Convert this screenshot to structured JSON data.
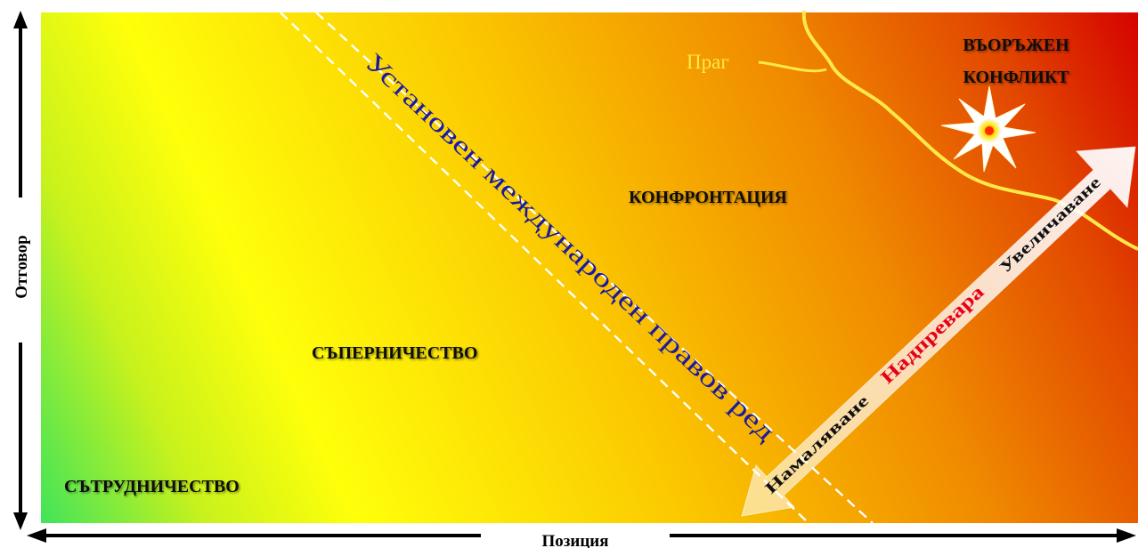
{
  "zones": {
    "cooperation": "СЪТРУДНИЧЕСТВО",
    "rivalry": "СЪПЕРНИЧЕСТВО",
    "confrontation": "КОНФРОНТАЦИЯ",
    "armed_conflict_line1": "ВЪОРЪЖЕН",
    "armed_conflict_line2": "КОНФЛИКТ"
  },
  "order_label": "Установен международен правов ред",
  "threshold_label": "Праг",
  "competition_arrow": {
    "decrease": "Намаляване",
    "competition": "Надпревара",
    "increase": "Увеличаване"
  },
  "axes": {
    "x_label": "Позиция",
    "y_label": "Отговор"
  },
  "colors": {
    "green": "#1fe06a",
    "yellow": "#ffff0a",
    "orange": "#f08a00",
    "red": "#d40000",
    "order_text": "#1a1aa0",
    "threshold": "#ffe84a",
    "competition_text": "#e8001a"
  },
  "icons": {
    "explosion": "starburst-icon"
  }
}
